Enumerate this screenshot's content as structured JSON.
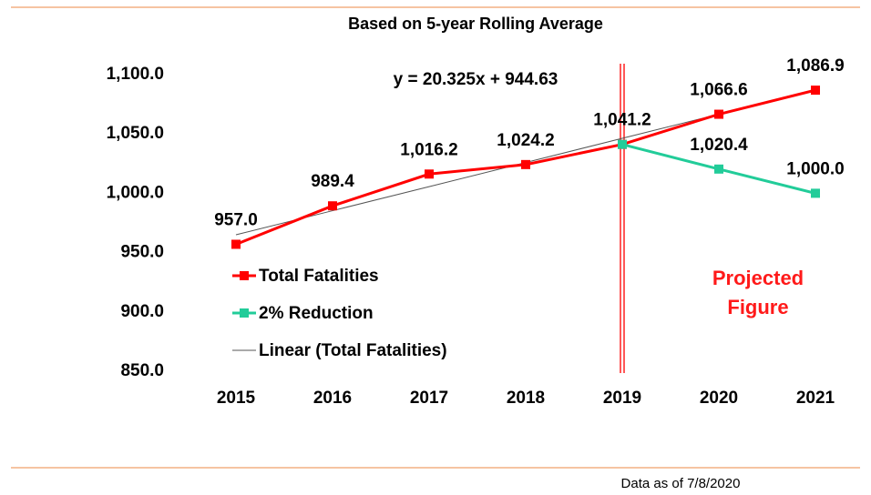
{
  "chart_data": {
    "type": "line",
    "title": "Based on 5-year Rolling Average",
    "categories": [
      "2015",
      "2016",
      "2017",
      "2018",
      "2019",
      "2020",
      "2021"
    ],
    "series": [
      {
        "name": "Total Fatalities",
        "color": "#ff0000",
        "marker": "square",
        "values": [
          957.0,
          989.4,
          1016.2,
          1024.2,
          1041.2,
          1066.6,
          1086.9
        ],
        "value_labels": [
          "957.0",
          "989.4",
          "1,016.2",
          "1,024.2",
          "1,041.2",
          "1,066.6",
          "1,086.9"
        ]
      },
      {
        "name": "2% Reduction",
        "color": "#22cc99",
        "marker": "square",
        "values": [
          null,
          null,
          null,
          null,
          1041.2,
          1020.4,
          1000.0
        ],
        "value_labels": [
          null,
          null,
          null,
          null,
          null,
          "1,020.4",
          "1,000.0"
        ]
      },
      {
        "name": "Linear (Total Fatalities)",
        "color": "#555555",
        "marker": "none",
        "values": [
          965.0,
          985.3,
          1005.6,
          1025.9,
          1046.3,
          1066.6,
          1086.9
        ]
      }
    ],
    "ylim": [
      850,
      1100
    ],
    "yticks": [
      {
        "value": 850,
        "label": "850.0"
      },
      {
        "value": 900,
        "label": "900.0"
      },
      {
        "value": 950,
        "label": "950.0"
      },
      {
        "value": 1000,
        "label": "1,000.0"
      },
      {
        "value": 1050,
        "label": "1,050.0"
      },
      {
        "value": 1100,
        "label": "1,100.0"
      }
    ],
    "grid": false,
    "trendline_equation": "y = 20.325x + 944.63",
    "projection_start": "2019",
    "projection_label": [
      "Projected",
      "Figure"
    ],
    "footnote": "Data as of 7/8/2020"
  }
}
